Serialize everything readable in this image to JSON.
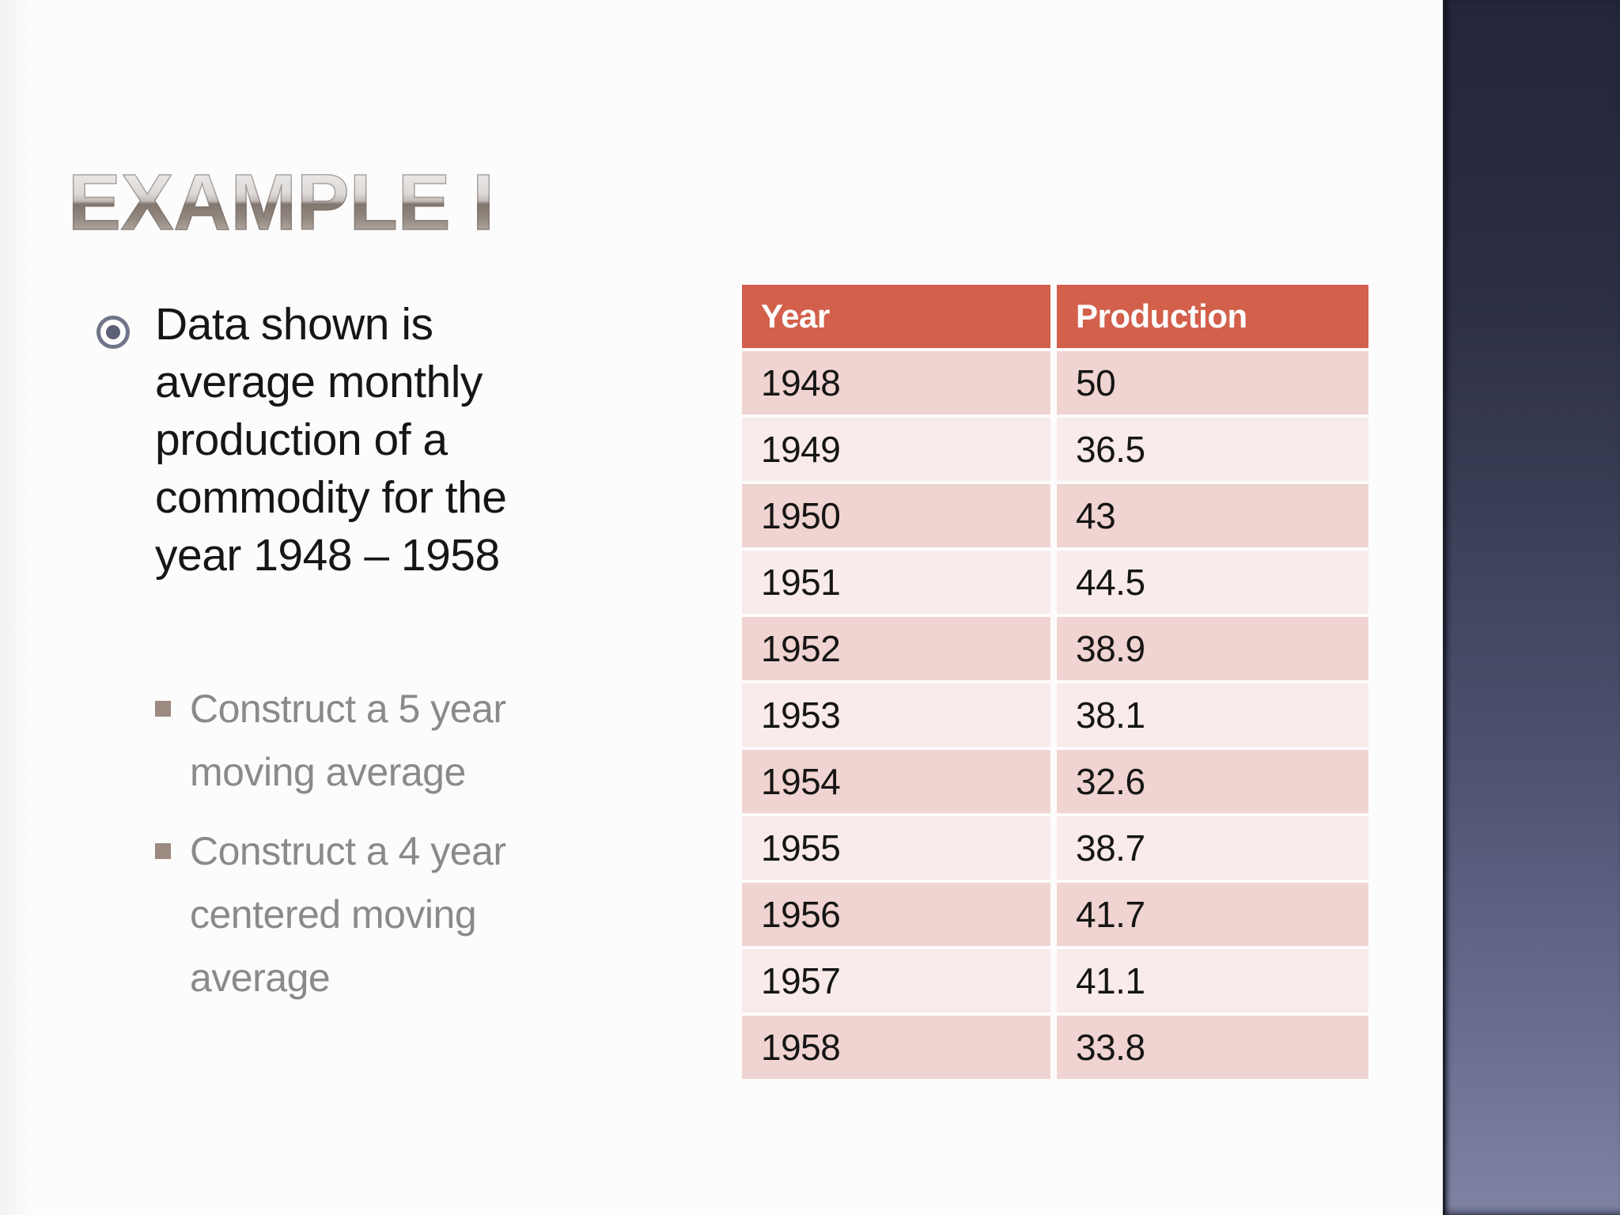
{
  "slide": {
    "title": "EXAMPLE I",
    "main_bullet": {
      "text": "Data shown is\naverage monthly\nproduction of a\ncommodity for the\nyear 1948 – 1958"
    },
    "sub_bullets": [
      {
        "text": "Construct a 5 year\nmoving average"
      },
      {
        "text": "Construct a 4 year\ncentered moving\naverage"
      }
    ]
  },
  "table": {
    "type": "table",
    "columns": [
      "Year",
      "Production"
    ],
    "rows": [
      {
        "year": "1948",
        "production": "50"
      },
      {
        "year": "1949",
        "production": "36.5"
      },
      {
        "year": "1950",
        "production": "43"
      },
      {
        "year": "1951",
        "production": "44.5"
      },
      {
        "year": "1952",
        "production": "38.9"
      },
      {
        "year": "1953",
        "production": "38.1"
      },
      {
        "year": "1954",
        "production": "32.6"
      },
      {
        "year": "1955",
        "production": "38.7"
      },
      {
        "year": "1956",
        "production": "41.7"
      },
      {
        "year": "1957",
        "production": "41.1"
      },
      {
        "year": "1958",
        "production": "33.8"
      }
    ]
  },
  "colors": {
    "header_bg": "#d2604b",
    "row_dark": "#f0d4d1",
    "row_light": "#f8ebe9",
    "panel_top": "#23253a",
    "panel_bottom": "#7f84a4",
    "sub_text": "#8b8989",
    "circle_ring": "#707589",
    "circle_dot": "#5d6177",
    "square_bullet": "#9b8a80"
  }
}
